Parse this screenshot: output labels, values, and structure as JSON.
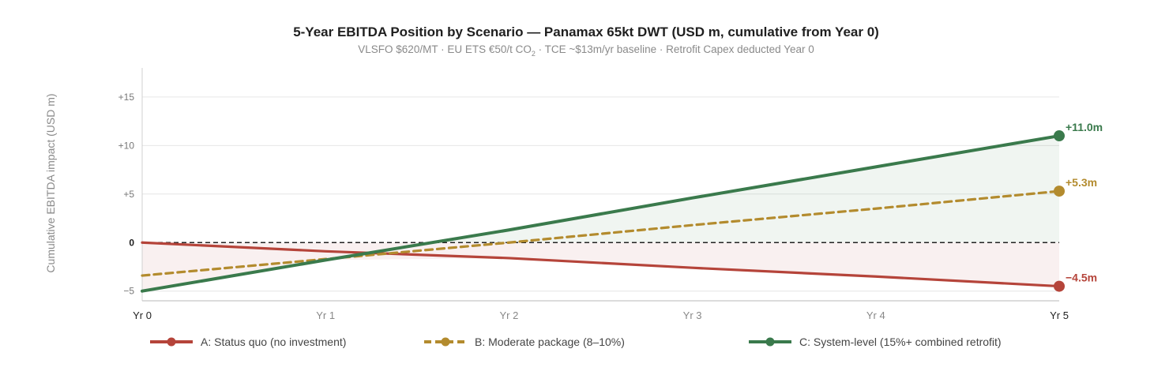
{
  "chart_data": {
    "type": "line",
    "title": "5-Year EBITDA Position by Scenario — Panamax 65kt DWT (USD m, cumulative from Year 0)",
    "subtitle_parts": {
      "before_sub": "VLSFO $620/MT · EU ETS €50/t CO",
      "subscript": "2",
      "after_sub": " · TCE ~$13m/yr baseline · Retrofit Capex deducted Year 0"
    },
    "ylabel": "Cumulative EBITDA impact (USD m)",
    "xlabel": "",
    "categories": [
      "Yr 0",
      "Yr 1",
      "Yr 2",
      "Yr 3",
      "Yr 4",
      "Yr 5"
    ],
    "x": [
      0,
      1,
      2,
      3,
      4,
      5
    ],
    "ylim": [
      -6,
      18
    ],
    "yticks": [
      {
        "value": -5,
        "label": "−5"
      },
      {
        "value": 0,
        "label": "0"
      },
      {
        "value": 5,
        "label": "+5"
      },
      {
        "value": 10,
        "label": "+10"
      },
      {
        "value": 15,
        "label": "+15"
      }
    ],
    "grid": true,
    "zero_line": "dashed",
    "legend_position": "bottom",
    "series": [
      {
        "name": "A: Status quo (no investment)",
        "values": [
          0,
          -0.9,
          -1.6,
          -2.6,
          -3.5,
          -4.5
        ],
        "color": "#b5443a",
        "dash": "solid",
        "end_label": "−4.5m"
      },
      {
        "name": "B: Moderate package (8–10%)",
        "values": [
          -3.4,
          -1.7,
          0.0,
          1.8,
          3.5,
          5.3
        ],
        "color": "#b38b2e",
        "dash": "dashed",
        "end_label": "+5.3m"
      },
      {
        "name": "C: System-level (15%+ combined retrofit)",
        "values": [
          -5.0,
          -1.8,
          1.3,
          4.6,
          7.8,
          11.0
        ],
        "color": "#3a7a4c",
        "dash": "solid",
        "end_label": "+11.0m"
      }
    ],
    "fill_colors": {
      "positive": "#3a7a4c",
      "negative": "#b5443a"
    }
  }
}
